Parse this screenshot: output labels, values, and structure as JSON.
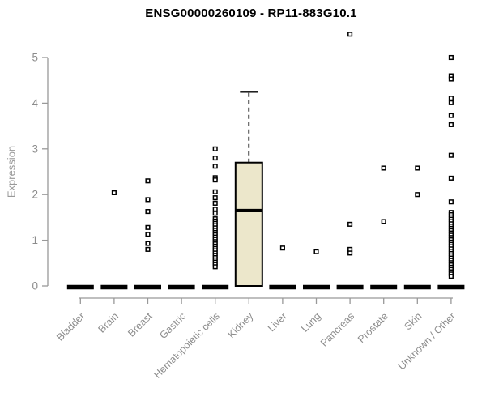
{
  "title": "ENSG00000260109 - RP11-883G10.1",
  "colors": {
    "background": "#ffffff",
    "title_text": "#000000",
    "axis_line": "#999999",
    "tick_label": "#8c8c8c",
    "box_fill": "#ece7cb",
    "box_border": "#000000",
    "median_line": "#000000",
    "outlier_stroke": "#000000",
    "outlier_fill": "#ffffff",
    "collapsed_bar": "#000000"
  },
  "chart_data": {
    "type": "boxplot",
    "title": "ENSG00000260109 - RP11-883G10.1",
    "xlabel": "",
    "ylabel": "Expression",
    "ylim": [
      0,
      5
    ],
    "yticks": [
      0,
      1,
      2,
      3,
      4,
      5
    ],
    "grid": false,
    "legend": "none",
    "categories": [
      "Bladder",
      "Brain",
      "Breast",
      "Gastric",
      "Hematopoietic cells",
      "Kidney",
      "Liver",
      "Lung",
      "Pancreas",
      "Prostate",
      "Skin",
      "Unknown / Other"
    ],
    "boxes": [
      {
        "category": "Bladder",
        "q1": 0,
        "median": 0,
        "q3": 0,
        "whisker_low": 0,
        "whisker_high": 0,
        "outliers": []
      },
      {
        "category": "Brain",
        "q1": 0,
        "median": 0,
        "q3": 0,
        "whisker_low": 0,
        "whisker_high": 0,
        "outliers": [
          2.04
        ]
      },
      {
        "category": "Breast",
        "q1": 0,
        "median": 0,
        "q3": 0,
        "whisker_low": 0,
        "whisker_high": 0,
        "outliers": [
          2.3,
          1.89,
          1.63,
          1.28,
          1.13,
          0.93,
          0.8
        ]
      },
      {
        "category": "Gastric",
        "q1": 0,
        "median": 0,
        "q3": 0,
        "whisker_low": 0,
        "whisker_high": 0,
        "outliers": []
      },
      {
        "category": "Hematopoietic cells",
        "q1": 0,
        "median": 0,
        "q3": 0,
        "whisker_low": 0,
        "whisker_high": 0,
        "outliers": [
          3.0,
          2.8,
          2.62,
          2.37,
          2.32,
          2.06,
          1.93,
          1.81,
          1.68,
          1.59,
          1.47,
          1.42,
          1.37,
          1.32,
          1.27,
          1.22,
          1.17,
          1.12,
          1.07,
          1.02,
          0.97,
          0.92,
          0.87,
          0.82,
          0.77,
          0.72,
          0.67,
          0.62,
          0.57,
          0.52,
          0.47,
          0.42
        ]
      },
      {
        "category": "Kidney",
        "q1": 0,
        "median": 1.65,
        "q3": 2.7,
        "whisker_low": 0,
        "whisker_high": 4.25,
        "outliers": []
      },
      {
        "category": "Liver",
        "q1": 0,
        "median": 0,
        "q3": 0,
        "whisker_low": 0,
        "whisker_high": 0,
        "outliers": [
          0.83
        ]
      },
      {
        "category": "Lung",
        "q1": 0,
        "median": 0,
        "q3": 0,
        "whisker_low": 0,
        "whisker_high": 0,
        "outliers": [
          0.75
        ]
      },
      {
        "category": "Pancreas",
        "q1": 0,
        "median": 0,
        "q3": 0,
        "whisker_low": 0,
        "whisker_high": 0,
        "outliers": [
          5.51,
          1.35,
          0.8,
          0.72
        ]
      },
      {
        "category": "Prostate",
        "q1": 0,
        "median": 0,
        "q3": 0,
        "whisker_low": 0,
        "whisker_high": 0,
        "outliers": [
          2.58,
          1.41
        ]
      },
      {
        "category": "Skin",
        "q1": 0,
        "median": 0,
        "q3": 0,
        "whisker_low": 0,
        "whisker_high": 0,
        "outliers": [
          2.58,
          2.0
        ]
      },
      {
        "category": "Unknown / Other",
        "q1": 0,
        "median": 0,
        "q3": 0,
        "whisker_low": 0,
        "whisker_high": 0,
        "outliers": [
          5.0,
          4.6,
          4.53,
          4.11,
          4.01,
          3.73,
          3.53,
          2.86,
          2.36,
          1.84,
          1.61,
          1.56,
          1.51,
          1.46,
          1.41,
          1.36,
          1.31,
          1.26,
          1.21,
          1.16,
          1.11,
          1.06,
          1.01,
          0.96,
          0.91,
          0.86,
          0.81,
          0.76,
          0.71,
          0.66,
          0.61,
          0.56,
          0.51,
          0.46,
          0.41,
          0.36,
          0.31,
          0.26,
          0.21
        ]
      }
    ]
  }
}
